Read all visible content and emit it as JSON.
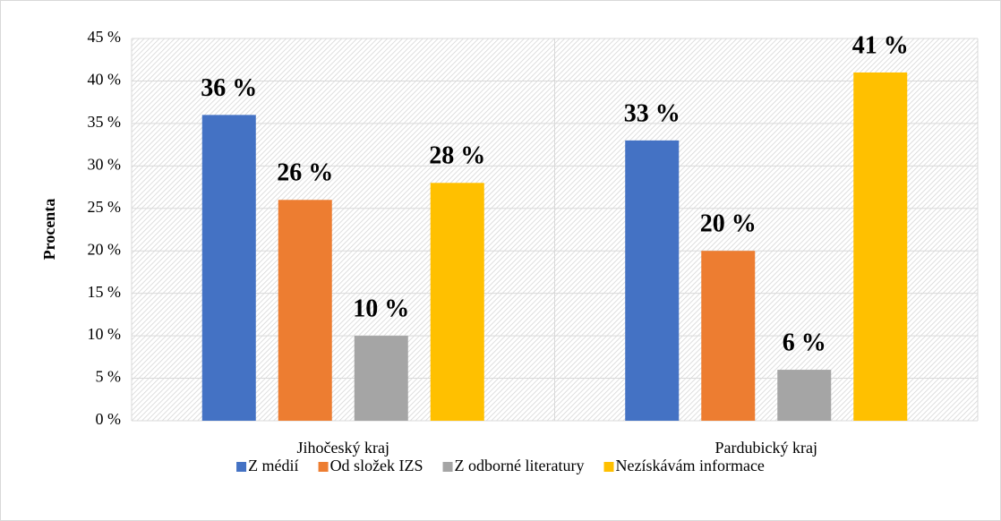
{
  "chart_data": {
    "type": "bar",
    "categories": [
      "Jihočeský kraj",
      "Pardubický kraj"
    ],
    "y_label": "Procenta",
    "series": [
      {
        "name": "Z médií",
        "color": "#4472c4",
        "values": [
          36,
          33
        ],
        "value_labels": [
          "36 %",
          "33 %"
        ]
      },
      {
        "name": "Od složek IZS",
        "color": "#ed7d31",
        "values": [
          26,
          20
        ],
        "value_labels": [
          "26 %",
          "20 %"
        ]
      },
      {
        "name": "Z odborné literatury",
        "color": "#a5a5a5",
        "values": [
          10,
          6
        ],
        "value_labels": [
          "10 %",
          "6 %"
        ]
      },
      {
        "name": "Nezískávám informace",
        "color": "#ffc000",
        "values": [
          28,
          41
        ],
        "value_labels": [
          "28 %",
          "41 %"
        ]
      }
    ],
    "ylim": [
      0,
      45
    ],
    "yticks": [
      {
        "value": 0,
        "label": "0 %"
      },
      {
        "value": 5,
        "label": "5 %"
      },
      {
        "value": 10,
        "label": "10 %"
      },
      {
        "value": 15,
        "label": "15 %"
      },
      {
        "value": 20,
        "label": "20 %"
      },
      {
        "value": 25,
        "label": "25 %"
      },
      {
        "value": 30,
        "label": "30 %"
      },
      {
        "value": 35,
        "label": "35 %"
      },
      {
        "value": 40,
        "label": "40 %"
      },
      {
        "value": 45,
        "label": "45 %"
      }
    ],
    "grid": true,
    "legend": "bottom"
  }
}
